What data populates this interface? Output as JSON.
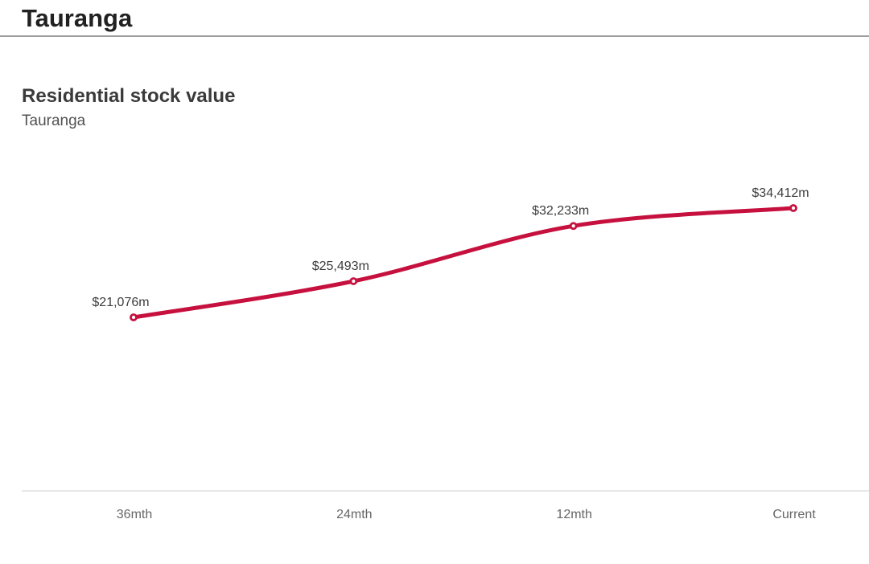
{
  "header": {
    "title": "Tauranga"
  },
  "chart_data": {
    "type": "line",
    "title": "Residential stock value",
    "subtitle": "Tauranga",
    "categories": [
      "36mth",
      "24mth",
      "12mth",
      "Current"
    ],
    "values": [
      21076,
      25493,
      32233,
      34412
    ],
    "point_labels": [
      "$21,076m",
      "$25,493m",
      "$32,233m",
      "$34,412m"
    ],
    "ylim": [
      0,
      40000
    ],
    "grid": false,
    "legend": "none",
    "x_axis_line": true,
    "line_color": "#C6113F",
    "marker": "open-circle",
    "marker_fill": "#ffffff",
    "label_color": "#3d3d3d",
    "axis_label_color": "#666666",
    "axis_line_color": "#e1e1e1"
  }
}
